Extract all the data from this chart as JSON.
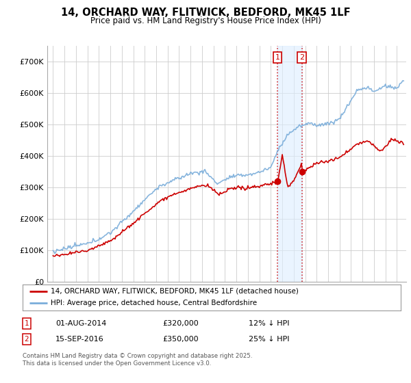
{
  "title": "14, ORCHARD WAY, FLITWICK, BEDFORD, MK45 1LF",
  "subtitle": "Price paid vs. HM Land Registry's House Price Index (HPI)",
  "background_color": "#ffffff",
  "plot_bg_color": "#ffffff",
  "grid_color": "#cccccc",
  "hpi_color": "#7aadda",
  "price_color": "#cc0000",
  "purchase1_year": 2014.583,
  "purchase1_price": 320000,
  "purchase1_date": "01-AUG-2014",
  "purchase1_hpi_label": "12% ↓ HPI",
  "purchase2_year": 2016.708,
  "purchase2_price": 350000,
  "purchase2_date": "15-SEP-2016",
  "purchase2_hpi_label": "25% ↓ HPI",
  "legend1": "14, ORCHARD WAY, FLITWICK, BEDFORD, MK45 1LF (detached house)",
  "legend2": "HPI: Average price, detached house, Central Bedfordshire",
  "footnote": "Contains HM Land Registry data © Crown copyright and database right 2025.\nThis data is licensed under the Open Government Licence v3.0.",
  "ylim_max": 750000,
  "yticks": [
    0,
    100000,
    200000,
    300000,
    400000,
    500000,
    600000,
    700000
  ],
  "ytick_labels": [
    "£0",
    "£100K",
    "£200K",
    "£300K",
    "£400K",
    "£500K",
    "£600K",
    "£700K"
  ],
  "xmin": 1994.5,
  "xmax": 2025.8
}
